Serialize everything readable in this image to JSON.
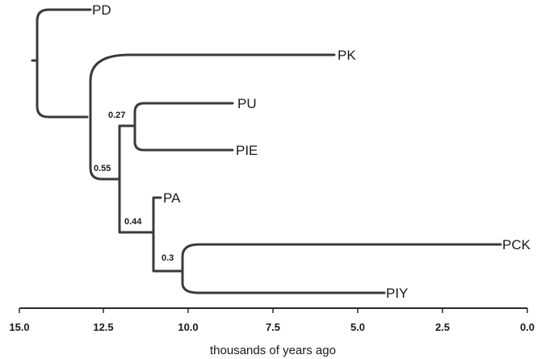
{
  "axis": {
    "title": "thousands of years ago",
    "ticks": [
      "15.0",
      "12.5",
      "10.0",
      "7.5",
      "5.0",
      "2.5",
      "0.0"
    ]
  },
  "leaves": [
    "PD",
    "PK",
    "PU",
    "PIE",
    "PA",
    "PCK",
    "PIY"
  ],
  "supports": [
    "0.27",
    "0.55",
    "0.44",
    "0.3"
  ]
}
